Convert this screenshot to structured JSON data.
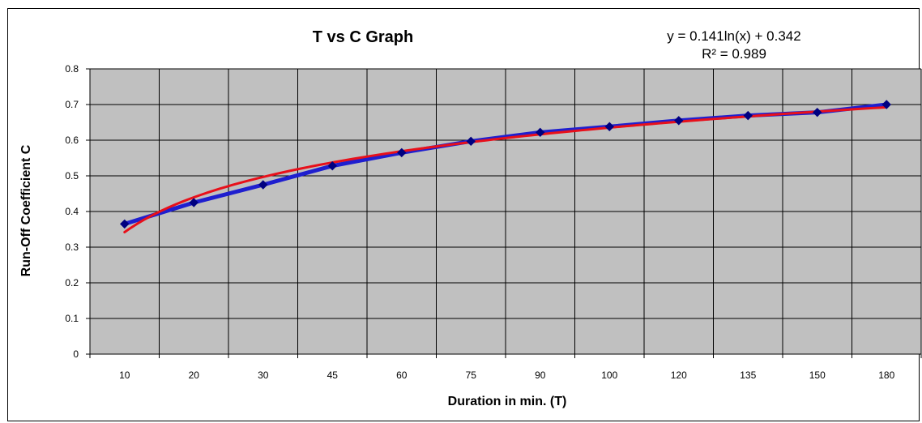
{
  "chart_data": {
    "type": "line",
    "title": "T vs C Graph",
    "xlabel": "Duration in min. (T)",
    "ylabel": "Run-Off Coefficient  C",
    "categories": [
      "10",
      "20",
      "30",
      "45",
      "60",
      "75",
      "90",
      "100",
      "120",
      "135",
      "150",
      "180"
    ],
    "yticks": [
      "0",
      "0.1",
      "0.2",
      "0.3",
      "0.4",
      "0.5",
      "0.6",
      "0.7",
      "0.8"
    ],
    "ylim": [
      0,
      0.8
    ],
    "grid": true,
    "series": [
      {
        "values": [
          0.365,
          0.425,
          0.475,
          0.528,
          0.565,
          0.597,
          0.622,
          0.638,
          0.655,
          0.669,
          0.678,
          0.7
        ],
        "color": "#1f1fcf",
        "marker": "diamond"
      },
      {
        "type": "log-trendline",
        "color": "#e8101a",
        "a": 0.141,
        "b": 0.342
      }
    ],
    "annotations": {
      "equation": "y = 0.141ln(x)  + 0.342",
      "r_squared": "R² = 0.989"
    },
    "colors": {
      "plot_background": "#c0c0c0",
      "gridlines": "#000000"
    }
  }
}
